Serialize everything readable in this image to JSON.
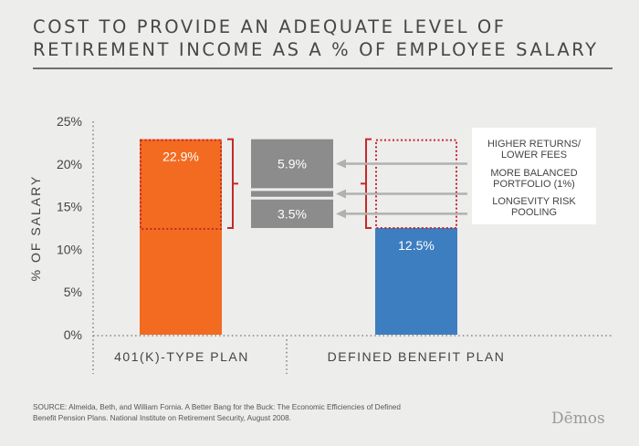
{
  "title_line1": "COST TO PROVIDE AN ADEQUATE LEVEL OF",
  "title_line2": "RETIREMENT INCOME AS A % OF EMPLOYEE SALARY",
  "source_line1": "SOURCE: Almeida, Beth, and William Fornia. A Better Bang for the Buck: The Economic Efficiencies of Defined",
  "source_line2": "Benefit Pension Plans. National Institute on Retirement Security, August 2008.",
  "logo": "Dēmos",
  "colors": {
    "plan_401k": "#f26b21",
    "plan_db": "#3d7ec0",
    "component_bar": "#8c8c8c",
    "bracket": "#c42a2a",
    "dotted_box": "#c42a2a",
    "arrow": "#b1b1b1"
  },
  "chart_data": {
    "type": "bar",
    "ylabel": "% OF SALARY",
    "ylim": [
      0,
      25
    ],
    "yticks": [
      {
        "value": 0,
        "label": "0%"
      },
      {
        "value": 5,
        "label": "5%"
      },
      {
        "value": 10,
        "label": "10%"
      },
      {
        "value": 15,
        "label": "15%"
      },
      {
        "value": 20,
        "label": "20%"
      },
      {
        "value": 25,
        "label": "25%"
      }
    ],
    "categories": [
      "401(K)-TYPE PLAN",
      "DEFINED BENEFIT PLAN"
    ],
    "values": [
      22.9,
      12.5
    ],
    "value_labels": [
      "22.9%",
      "12.5%"
    ],
    "cost_difference": {
      "components": [
        {
          "value": 5.9,
          "label": "5.9%"
        },
        {
          "value": 1.0,
          "label": ""
        },
        {
          "value": 3.5,
          "label": "3.5%"
        }
      ],
      "reasons": [
        {
          "line1": "HIGHER RETURNS/",
          "line2": "LOWER FEES"
        },
        {
          "line1": "MORE BALANCED",
          "line2": "PORTFOLIO (1%)"
        },
        {
          "line1": "LONGEVITY RISK",
          "line2": "POOLING"
        }
      ]
    }
  }
}
